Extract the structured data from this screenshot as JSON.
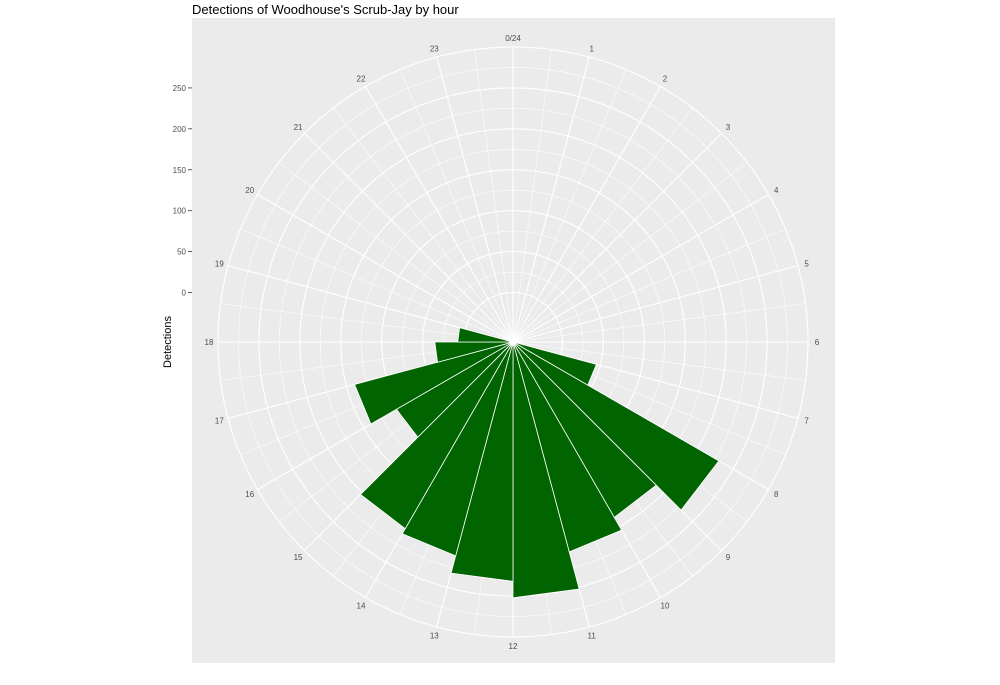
{
  "chart_data": {
    "type": "bar",
    "coord": "polar",
    "title": "Detections of Woodhouse's Scrub-Jay by hour",
    "xlabel": "",
    "ylabel": "Detections",
    "categories": [
      "0/24",
      "1",
      "2",
      "3",
      "4",
      "5",
      "6",
      "7",
      "8",
      "9",
      "10",
      "11",
      "12",
      "13",
      "14",
      "15",
      "16",
      "17",
      "18",
      "19",
      "20",
      "21",
      "22",
      "23"
    ],
    "values": [
      0,
      0,
      0,
      0,
      0,
      0,
      0,
      45,
      230,
      187,
      205,
      252,
      232,
      210,
      203,
      104,
      140,
      35,
      7,
      0,
      0,
      0,
      0,
      0
    ],
    "yticks": [
      0,
      50,
      100,
      150,
      200,
      250
    ],
    "ylim": [
      0,
      300
    ],
    "bar_color": "#006400",
    "panel_color": "#ebebeb",
    "grid": true
  }
}
